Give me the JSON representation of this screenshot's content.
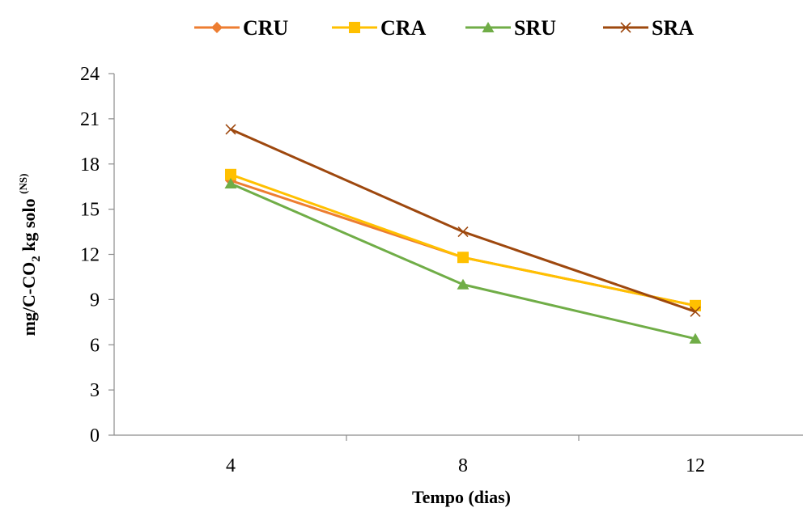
{
  "chart_data": {
    "type": "line",
    "categories": [
      "4",
      "8",
      "12"
    ],
    "x": [
      4,
      8,
      12
    ],
    "xlabel": "Tempo (dias)",
    "ylabel": {
      "prefix": "mg/C-CO",
      "subscript": "2",
      "suffix": " kg solo ",
      "superscript": "(NS)"
    },
    "ylim": [
      0,
      24
    ],
    "yticks": [
      0,
      3,
      6,
      9,
      12,
      15,
      18,
      21,
      24
    ],
    "ytick_labels": [
      "0",
      "3",
      "6",
      "9",
      "12",
      "15",
      "18",
      "21",
      "24"
    ],
    "grid": false,
    "legend_position": "top",
    "series": [
      {
        "name": "CRU",
        "values": [
          16.9,
          11.8,
          8.6
        ],
        "color": "#ED7D31",
        "marker": "diamond"
      },
      {
        "name": "CRA",
        "values": [
          17.3,
          11.8,
          8.6
        ],
        "color": "#FFC000",
        "marker": "square"
      },
      {
        "name": "SRU",
        "values": [
          16.7,
          10.0,
          6.4
        ],
        "color": "#70AD47",
        "marker": "triangle"
      },
      {
        "name": "SRA",
        "values": [
          20.3,
          13.5,
          8.2
        ],
        "color": "#9E480E",
        "marker": "x"
      }
    ]
  }
}
